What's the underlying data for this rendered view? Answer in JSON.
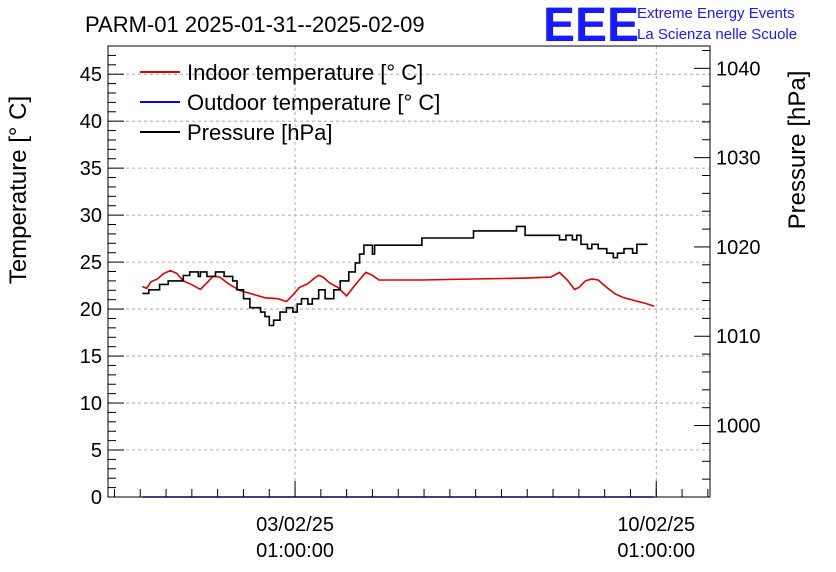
{
  "chart_data": {
    "type": "line",
    "title": "PARM-01 2025-01-31--2025-02-09",
    "ylabel_left": "Temperature [° C]",
    "ylabel_right": "Pressure [hPa]",
    "xlabel": "",
    "x_ticks": [
      {
        "date": "03/02/25",
        "time": "01:00:00",
        "value": "2025-02-03T01:00:00"
      },
      {
        "date": "10/02/25",
        "time": "01:00:00",
        "value": "2025-02-10T01:00:00"
      }
    ],
    "xlim": [
      "2025-01-30T10:00:00",
      "2025-02-11T02:00:00"
    ],
    "ylim_left": [
      0,
      48
    ],
    "ylim_right": [
      992,
      1042.5
    ],
    "y_ticks_left": [
      "0",
      "5",
      "10",
      "15",
      "20",
      "25",
      "30",
      "35",
      "40",
      "45"
    ],
    "y_ticks_right": [
      "1000",
      "1010",
      "1020",
      "1030",
      "1040"
    ],
    "grid": true,
    "legend_placement": "top-left",
    "series": [
      {
        "name": "Indoor temperature [° C]",
        "color": "#e00000",
        "axis": "left",
        "points": [
          [
            "2025-01-31T02:00:00",
            22.4
          ],
          [
            "2025-01-31T04:00:00",
            22.2
          ],
          [
            "2025-01-31T06:00:00",
            22.9
          ],
          [
            "2025-01-31T09:00:00",
            23.2
          ],
          [
            "2025-01-31T12:00:00",
            23.8
          ],
          [
            "2025-01-31T15:00:00",
            24.1
          ],
          [
            "2025-01-31T18:00:00",
            23.8
          ],
          [
            "2025-01-31T21:00:00",
            23.0
          ],
          [
            "2025-02-01T01:00:00",
            22.6
          ],
          [
            "2025-02-01T05:00:00",
            22.1
          ],
          [
            "2025-02-01T08:00:00",
            22.8
          ],
          [
            "2025-02-01T11:00:00",
            23.5
          ],
          [
            "2025-02-01T14:00:00",
            23.4
          ],
          [
            "2025-02-01T18:00:00",
            22.7
          ],
          [
            "2025-02-01T23:00:00",
            22.0
          ],
          [
            "2025-02-02T05:00:00",
            21.6
          ],
          [
            "2025-02-02T11:00:00",
            21.2
          ],
          [
            "2025-02-02T17:00:00",
            21.1
          ],
          [
            "2025-02-02T21:00:00",
            20.8
          ],
          [
            "2025-02-03T00:00:00",
            21.5
          ],
          [
            "2025-02-03T03:00:00",
            22.3
          ],
          [
            "2025-02-03T07:00:00",
            22.7
          ],
          [
            "2025-02-03T10:00:00",
            23.3
          ],
          [
            "2025-02-03T12:00:00",
            23.6
          ],
          [
            "2025-02-03T14:00:00",
            23.4
          ],
          [
            "2025-02-03T17:00:00",
            22.8
          ],
          [
            "2025-02-03T21:00:00",
            22.3
          ],
          [
            "2025-02-04T01:00:00",
            21.4
          ],
          [
            "2025-02-04T05:00:00",
            22.6
          ],
          [
            "2025-02-04T08:00:00",
            23.4
          ],
          [
            "2025-02-04T10:00:00",
            23.9
          ],
          [
            "2025-02-04T13:00:00",
            23.6
          ],
          [
            "2025-02-04T16:00:00",
            23.1
          ],
          [
            "2025-02-05T12:00:00",
            23.1
          ],
          [
            "2025-02-06T12:00:00",
            23.2
          ],
          [
            "2025-02-07T12:00:00",
            23.3
          ],
          [
            "2025-02-08T00:00:00",
            23.4
          ],
          [
            "2025-02-08T04:00:00",
            23.9
          ],
          [
            "2025-02-08T08:00:00",
            23.0
          ],
          [
            "2025-02-08T11:00:00",
            22.1
          ],
          [
            "2025-02-08T13:00:00",
            22.3
          ],
          [
            "2025-02-08T16:00:00",
            23.0
          ],
          [
            "2025-02-08T19:00:00",
            23.2
          ],
          [
            "2025-02-08T22:00:00",
            23.1
          ],
          [
            "2025-02-09T02:00:00",
            22.3
          ],
          [
            "2025-02-09T06:00:00",
            21.6
          ],
          [
            "2025-02-09T10:00:00",
            21.2
          ],
          [
            "2025-02-09T15:00:00",
            20.9
          ],
          [
            "2025-02-09T20:00:00",
            20.6
          ],
          [
            "2025-02-10T00:00:00",
            20.3
          ]
        ]
      },
      {
        "name": "Outdoor temperature [° C]",
        "color": "#0000ff",
        "axis": "left",
        "points": [
          [
            "2025-01-31T02:00:00",
            0
          ],
          [
            "2025-02-10T00:00:00",
            0
          ]
        ]
      },
      {
        "name": "Pressure [hPa]",
        "color": "#000000",
        "axis": "right",
        "step": true,
        "points": [
          [
            "2025-01-31T02:00:00",
            1014.8
          ],
          [
            "2025-01-31T05:00:00",
            1015.2
          ],
          [
            "2025-01-31T10:00:00",
            1015.8
          ],
          [
            "2025-01-31T14:00:00",
            1016.2
          ],
          [
            "2025-01-31T21:00:00",
            1016.8
          ],
          [
            "2025-02-01T00:00:00",
            1017.2
          ],
          [
            "2025-02-01T04:00:00",
            1016.7
          ],
          [
            "2025-02-01T05:00:00",
            1017.2
          ],
          [
            "2025-02-01T08:00:00",
            1016.7
          ],
          [
            "2025-02-01T12:00:00",
            1017.2
          ],
          [
            "2025-02-01T16:00:00",
            1016.7
          ],
          [
            "2025-02-01T20:00:00",
            1016.2
          ],
          [
            "2025-02-01T22:00:00",
            1015.2
          ],
          [
            "2025-02-02T01:00:00",
            1014.2
          ],
          [
            "2025-02-02T04:00:00",
            1013.2
          ],
          [
            "2025-02-02T09:00:00",
            1012.7
          ],
          [
            "2025-02-02T11:00:00",
            1012.2
          ],
          [
            "2025-02-02T13:00:00",
            1011.2
          ],
          [
            "2025-02-02T15:00:00",
            1011.8
          ],
          [
            "2025-02-02T18:00:00",
            1012.7
          ],
          [
            "2025-02-02T21:00:00",
            1013.2
          ],
          [
            "2025-02-03T00:00:00",
            1012.7
          ],
          [
            "2025-02-03T02:00:00",
            1013.6
          ],
          [
            "2025-02-03T04:00:00",
            1014.2
          ],
          [
            "2025-02-03T07:00:00",
            1013.6
          ],
          [
            "2025-02-03T09:00:00",
            1014.2
          ],
          [
            "2025-02-03T12:00:00",
            1015.2
          ],
          [
            "2025-02-03T15:00:00",
            1014.2
          ],
          [
            "2025-02-03T19:00:00",
            1015.2
          ],
          [
            "2025-02-03T22:00:00",
            1016.2
          ],
          [
            "2025-02-04T02:00:00",
            1017.2
          ],
          [
            "2025-02-04T05:00:00",
            1018.2
          ],
          [
            "2025-02-04T07:00:00",
            1019.2
          ],
          [
            "2025-02-04T09:00:00",
            1020.2
          ],
          [
            "2025-02-04T13:00:00",
            1019.2
          ],
          [
            "2025-02-04T14:00:00",
            1020.2
          ],
          [
            "2025-02-05T12:00:00",
            1021.0
          ],
          [
            "2025-02-06T12:00:00",
            1021.8
          ],
          [
            "2025-02-07T08:00:00",
            1022.3
          ],
          [
            "2025-02-07T12:00:00",
            1021.3
          ],
          [
            "2025-02-08T00:00:00",
            1021.3
          ],
          [
            "2025-02-08T04:00:00",
            1020.8
          ],
          [
            "2025-02-08T07:00:00",
            1021.3
          ],
          [
            "2025-02-08T10:00:00",
            1020.8
          ],
          [
            "2025-02-08T12:00:00",
            1021.3
          ],
          [
            "2025-02-08T14:00:00",
            1020.3
          ],
          [
            "2025-02-08T17:00:00",
            1019.8
          ],
          [
            "2025-02-08T19:00:00",
            1020.3
          ],
          [
            "2025-02-08T22:00:00",
            1019.8
          ],
          [
            "2025-02-09T02:00:00",
            1019.3
          ],
          [
            "2025-02-09T05:00:00",
            1018.8
          ],
          [
            "2025-02-09T07:00:00",
            1019.3
          ],
          [
            "2025-02-09T10:00:00",
            1019.8
          ],
          [
            "2025-02-09T14:00:00",
            1019.3
          ],
          [
            "2025-02-09T16:00:00",
            1020.3
          ],
          [
            "2025-02-09T21:00:00",
            1020.3
          ]
        ]
      }
    ]
  },
  "logo": {
    "letters": "EEE",
    "line1": "Extreme Energy Events",
    "line2": "La Scienza nelle Scuole",
    "color": "#1a1aff"
  }
}
